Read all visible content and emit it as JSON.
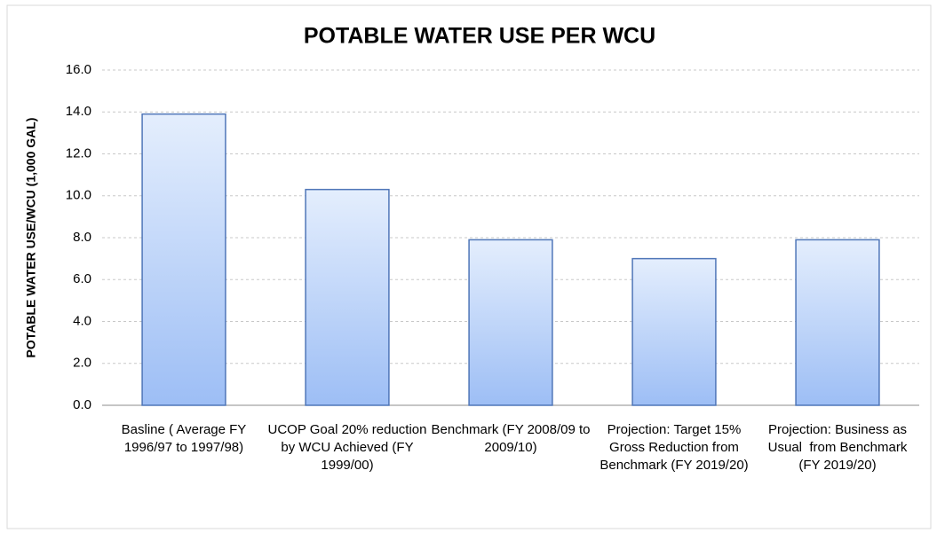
{
  "chart_data": {
    "type": "bar",
    "title": "POTABLE WATER USE PER WCU",
    "y_label": "POTABLE WATER USE/WCU (1,000 GAL)",
    "categories": [
      "Basline ( Average FY 1996/97 to 1997/98)",
      "UCOP Goal 20% reduction by WCU Achieved (FY 1999/00)",
      "Benchmark (FY 2008/09 to 2009/10)",
      "Projection: Target 15% Gross Reduction from Benchmark (FY 2019/20)",
      "Projection: Business as Usual  from Benchmark (FY 2019/20)"
    ],
    "values": [
      13.9,
      10.3,
      7.9,
      7.0,
      7.9
    ],
    "color": "#9dbef5",
    "ylim": [
      0,
      16
    ],
    "yticks": [
      {
        "value": 0,
        "label": "0.0"
      },
      {
        "value": 2,
        "label": "2.0"
      },
      {
        "value": 4,
        "label": "4.0"
      },
      {
        "value": 6,
        "label": "6.0"
      },
      {
        "value": 8,
        "label": "8.0"
      },
      {
        "value": 10,
        "label": "10.0"
      },
      {
        "value": 12,
        "label": "12.0"
      },
      {
        "value": 14,
        "label": "14.0"
      },
      {
        "value": 16,
        "label": "16.0"
      }
    ],
    "grid": true
  }
}
